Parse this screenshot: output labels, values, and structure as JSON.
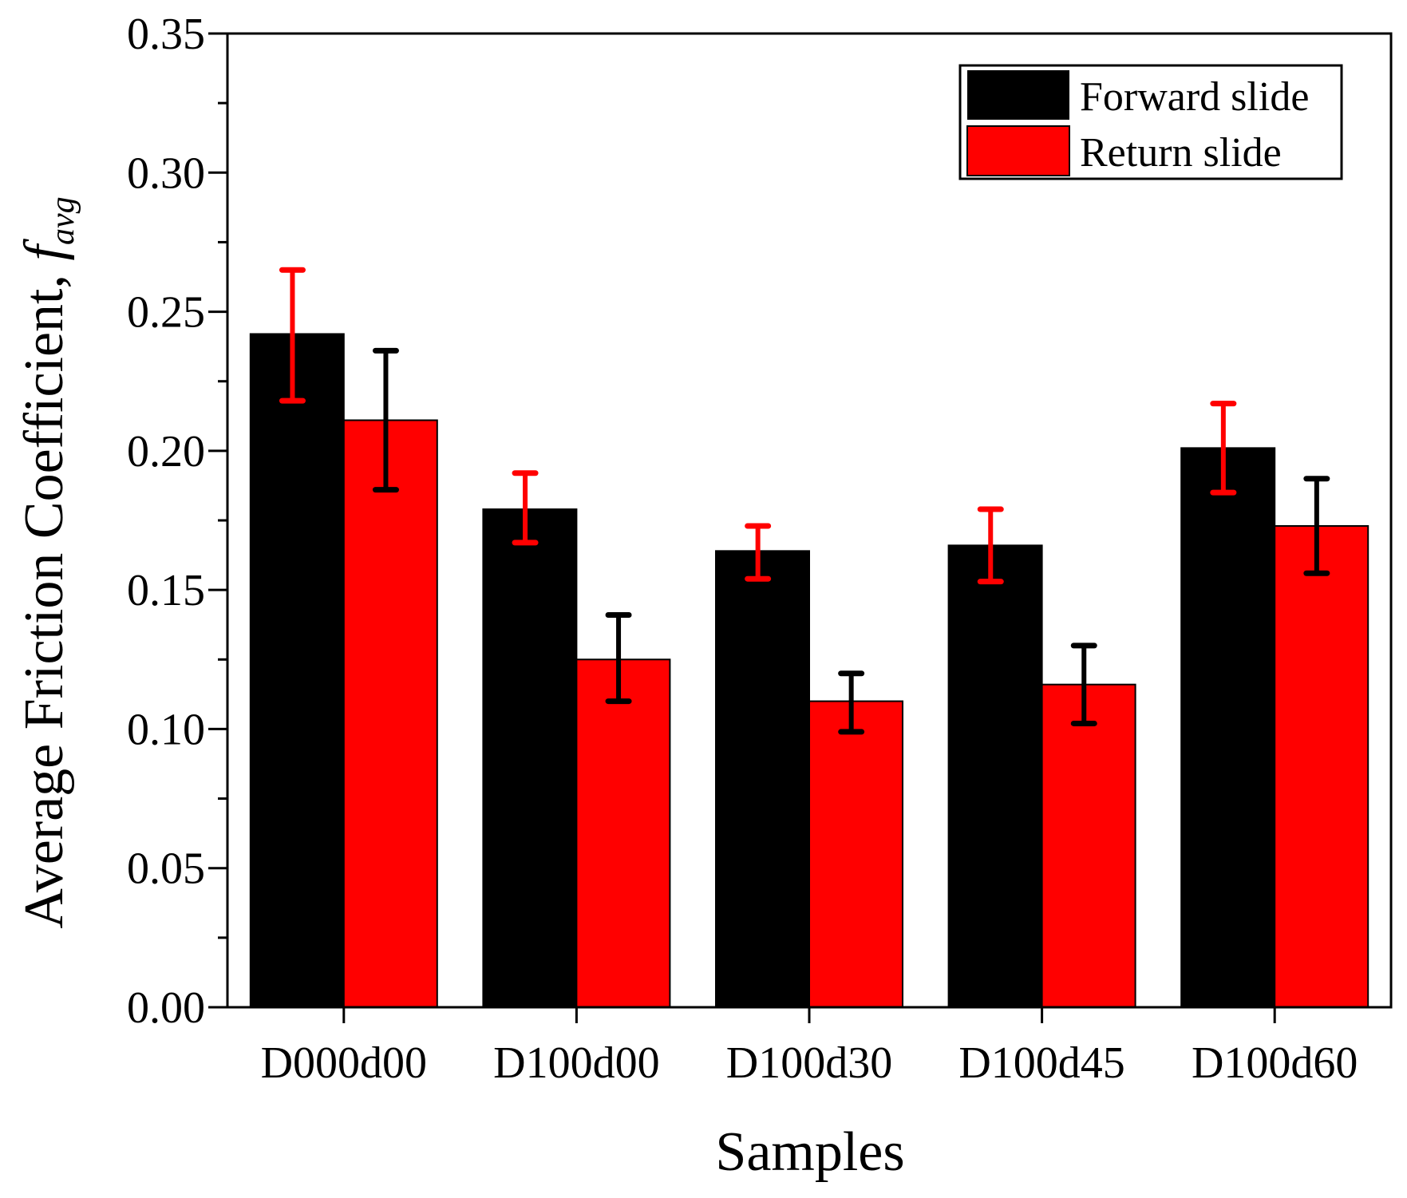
{
  "chart_data": {
    "type": "bar",
    "title": "",
    "xlabel": "Samples",
    "ylabel": "Average Friction Coefficient, ",
    "ylabel_symbol": "f",
    "ylabel_subscript": "avg",
    "ylim": [
      0,
      0.35
    ],
    "yticks": [
      "0.00",
      "0.05",
      "0.10",
      "0.15",
      "0.20",
      "0.25",
      "0.30",
      "0.35"
    ],
    "categories": [
      "D000d00",
      "D100d00",
      "D100d30",
      "D100d45",
      "D100d60"
    ],
    "series": [
      {
        "name": "Forward slide",
        "color": "#000000",
        "errorbar_color": "#ff0000",
        "values": [
          0.242,
          0.179,
          0.164,
          0.166,
          0.201
        ],
        "err_low": [
          0.218,
          0.167,
          0.154,
          0.153,
          0.185
        ],
        "err_high": [
          0.265,
          0.192,
          0.173,
          0.179,
          0.217
        ]
      },
      {
        "name": "Return slide",
        "color": "#ff0000",
        "errorbar_color": "#000000",
        "values": [
          0.211,
          0.125,
          0.11,
          0.116,
          0.173
        ],
        "err_low": [
          0.186,
          0.11,
          0.099,
          0.102,
          0.156
        ],
        "err_high": [
          0.236,
          0.141,
          0.12,
          0.13,
          0.19
        ]
      }
    ],
    "legend": [
      "Forward slide",
      "Return slide"
    ],
    "legend_position": "top-right",
    "grid": false
  }
}
